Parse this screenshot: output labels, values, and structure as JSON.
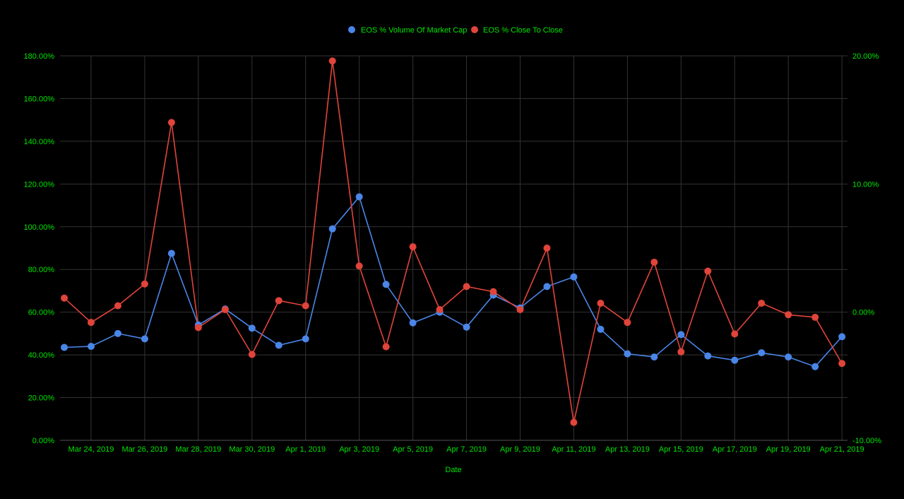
{
  "chart_data": {
    "type": "line",
    "title": "",
    "xlabel": "Date",
    "ylabel_left": "",
    "ylabel_right": "",
    "x": [
      "Mar 23, 2019",
      "Mar 24, 2019",
      "Mar 25, 2019",
      "Mar 26, 2019",
      "Mar 27, 2019",
      "Mar 28, 2019",
      "Mar 29, 2019",
      "Mar 30, 2019",
      "Mar 31, 2019",
      "Apr 1, 2019",
      "Apr 2, 2019",
      "Apr 3, 2019",
      "Apr 4, 2019",
      "Apr 5, 2019",
      "Apr 6, 2019",
      "Apr 7, 2019",
      "Apr 8, 2019",
      "Apr 9, 2019",
      "Apr 10, 2019",
      "Apr 11, 2019",
      "Apr 12, 2019",
      "Apr 13, 2019",
      "Apr 14, 2019",
      "Apr 15, 2019",
      "Apr 16, 2019",
      "Apr 17, 2019",
      "Apr 18, 2019",
      "Apr 19, 2019",
      "Apr 20, 2019",
      "Apr 21, 2019"
    ],
    "x_tick_labels": [
      "Mar 24, 2019",
      "Mar 26, 2019",
      "Mar 28, 2019",
      "Mar 30, 2019",
      "Apr 1, 2019",
      "Apr 3, 2019",
      "Apr 5, 2019",
      "Apr 7, 2019",
      "Apr 9, 2019",
      "Apr 11, 2019",
      "Apr 13, 2019",
      "Apr 15, 2019",
      "Apr 17, 2019",
      "Apr 19, 2019",
      "Apr 21, 2019"
    ],
    "y_left_ticks": [
      "0.00%",
      "20.00%",
      "40.00%",
      "60.00%",
      "80.00%",
      "100.00%",
      "120.00%",
      "140.00%",
      "160.00%",
      "180.00%"
    ],
    "y_left_lim": [
      0,
      180
    ],
    "y_right_ticks": [
      "-10.00%",
      "0.00%",
      "10.00%",
      "20.00%"
    ],
    "y_right_lim": [
      -10,
      20
    ],
    "grid": true,
    "legend_position": "top-center",
    "series": [
      {
        "name": "EOS % Volume Of Market Cap",
        "axis": "left",
        "color": "#4a86e8",
        "values": [
          43.5,
          44.0,
          50.0,
          47.5,
          87.5,
          54.0,
          61.5,
          52.5,
          44.5,
          47.5,
          99.0,
          114.0,
          73.0,
          55.0,
          60.0,
          53.0,
          68.0,
          62.0,
          72.0,
          76.5,
          52.0,
          40.5,
          39.0,
          49.5,
          39.5,
          37.5,
          41.0,
          39.0,
          34.5,
          48.5
        ]
      },
      {
        "name": "EOS % Close To Close",
        "axis": "right",
        "color": "#e0443a",
        "values": [
          1.1,
          -0.8,
          0.5,
          2.2,
          14.8,
          -1.2,
          0.2,
          -3.3,
          0.9,
          0.5,
          19.6,
          3.6,
          -2.7,
          5.1,
          0.2,
          2.0,
          1.6,
          0.2,
          5.0,
          -8.6,
          0.7,
          -0.8,
          3.9,
          -3.1,
          3.2,
          -1.7,
          0.7,
          -0.2,
          -0.4,
          -4.0
        ]
      }
    ]
  },
  "colors": {
    "background": "#000000",
    "text": "#00e600",
    "grid": "#333333",
    "axis_line": "#555555"
  }
}
